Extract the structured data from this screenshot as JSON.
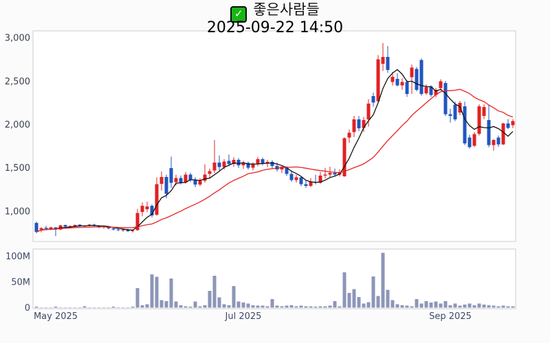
{
  "title": {
    "checkbox_icon": "green-checkbox",
    "check_glyph": "✓",
    "name": "좋은사람들",
    "datetime": "2025-09-22 14:50"
  },
  "colors": {
    "up": "#e02222",
    "down": "#2056c0",
    "volume": "#8d96b8",
    "ma_short": "#111111",
    "ma_long": "#e62222",
    "panel_border": "#cccccc",
    "panel_bg": "#ffffff"
  },
  "chart_data": {
    "type": "candlestick",
    "panels": [
      "price",
      "volume"
    ],
    "title": "좋은사람들",
    "subtitle": "2025-09-22 14:50",
    "grid": "off",
    "price_axis": {
      "range": [
        650,
        3080
      ],
      "ticks": [
        {
          "value": 3000,
          "label": "3,000"
        },
        {
          "value": 2500,
          "label": "2,500"
        },
        {
          "value": 2000,
          "label": "2,000"
        },
        {
          "value": 1500,
          "label": "1,500"
        },
        {
          "value": 1000,
          "label": "1,000"
        }
      ]
    },
    "volume_axis": {
      "unit": "millions",
      "ticks": [
        {
          "value": 100,
          "label": "100M"
        },
        {
          "value": 50,
          "label": "50M"
        },
        {
          "value": 0,
          "label": "0"
        }
      ]
    },
    "x_axis": {
      "ticks": [
        {
          "index": 4,
          "label": "May 2025"
        },
        {
          "index": 43,
          "label": "Jul 2025"
        },
        {
          "index": 86,
          "label": "Sep 2025"
        }
      ]
    },
    "up_color": "#e02222",
    "down_color": "#2056c0",
    "volume_color": "#8d96b8",
    "overlays": [
      {
        "name": "short-ma",
        "window": 5,
        "color": "#111111"
      },
      {
        "name": "long-ma",
        "window": 20,
        "color": "#e62222"
      }
    ],
    "ohlc": [
      [
        865,
        880,
        745,
        760
      ],
      [
        790,
        815,
        755,
        805
      ],
      [
        810,
        830,
        785,
        795
      ],
      [
        795,
        820,
        780,
        812
      ],
      [
        812,
        818,
        712,
        790
      ],
      [
        790,
        842,
        780,
        835
      ],
      [
        838,
        845,
        808,
        820
      ],
      [
        820,
        835,
        800,
        828
      ],
      [
        830,
        848,
        818,
        840
      ],
      [
        842,
        850,
        818,
        826
      ],
      [
        826,
        838,
        810,
        832
      ],
      [
        835,
        852,
        822,
        845
      ],
      [
        845,
        855,
        823,
        830
      ],
      [
        830,
        840,
        803,
        815
      ],
      [
        815,
        828,
        798,
        822
      ],
      [
        822,
        826,
        790,
        800
      ],
      [
        800,
        812,
        778,
        790
      ],
      [
        790,
        800,
        768,
        780
      ],
      [
        780,
        795,
        763,
        788
      ],
      [
        788,
        798,
        758,
        770
      ],
      [
        770,
        785,
        753,
        778
      ],
      [
        780,
        1025,
        773,
        980
      ],
      [
        990,
        1100,
        940,
        1060
      ],
      [
        1020,
        1110,
        988,
        1055
      ],
      [
        1060,
        1078,
        928,
        950
      ],
      [
        958,
        1390,
        948,
        1310
      ],
      [
        1315,
        1460,
        1238,
        1395
      ],
      [
        1395,
        1422,
        1148,
        1200
      ],
      [
        1495,
        1630,
        1268,
        1325
      ],
      [
        1335,
        1420,
        1298,
        1382
      ],
      [
        1382,
        1412,
        1308,
        1330
      ],
      [
        1330,
        1452,
        1318,
        1420
      ],
      [
        1420,
        1442,
        1338,
        1360
      ],
      [
        1360,
        1392,
        1278,
        1308
      ],
      [
        1308,
        1380,
        1288,
        1350
      ],
      [
        1350,
        1540,
        1330,
        1422
      ],
      [
        1430,
        1492,
        1382,
        1462
      ],
      [
        1470,
        1820,
        1438,
        1560
      ],
      [
        1560,
        1642,
        1468,
        1508
      ],
      [
        1508,
        1600,
        1480,
        1572
      ],
      [
        1580,
        1652,
        1518,
        1545
      ],
      [
        1545,
        1622,
        1510,
        1592
      ],
      [
        1592,
        1612,
        1498,
        1528
      ],
      [
        1528,
        1582,
        1488,
        1555
      ],
      [
        1555,
        1572,
        1478,
        1500
      ],
      [
        1500,
        1562,
        1470,
        1540
      ],
      [
        1540,
        1625,
        1518,
        1600
      ],
      [
        1600,
        1618,
        1528,
        1550
      ],
      [
        1550,
        1592,
        1508,
        1570
      ],
      [
        1570,
        1588,
        1488,
        1520
      ],
      [
        1520,
        1560,
        1458,
        1480
      ],
      [
        1480,
        1532,
        1440,
        1512
      ],
      [
        1505,
        1518,
        1408,
        1430
      ],
      [
        1430,
        1472,
        1338,
        1360
      ],
      [
        1360,
        1420,
        1328,
        1392
      ],
      [
        1392,
        1402,
        1288,
        1310
      ],
      [
        1310,
        1352,
        1268,
        1290
      ],
      [
        1290,
        1382,
        1278,
        1340
      ],
      [
        1340,
        1420,
        1308,
        1328
      ],
      [
        1328,
        1452,
        1318,
        1410
      ],
      [
        1410,
        1500,
        1378,
        1420
      ],
      [
        1420,
        1512,
        1388,
        1440
      ],
      [
        1440,
        1492,
        1398,
        1420
      ],
      [
        1420,
        1482,
        1400,
        1450
      ],
      [
        1402,
        1852,
        1396,
        1840
      ],
      [
        1850,
        1942,
        1788,
        1905
      ],
      [
        1912,
        2100,
        1855,
        2060
      ],
      [
        2060,
        2098,
        1922,
        1955
      ],
      [
        1960,
        2088,
        1915,
        2050
      ],
      [
        2060,
        2292,
        1975,
        2240
      ],
      [
        2330,
        2368,
        2205,
        2255
      ],
      [
        2270,
        2800,
        2248,
        2750
      ],
      [
        2700,
        2940,
        2618,
        2780
      ],
      [
        2780,
        2905,
        2595,
        2630
      ],
      [
        2490,
        2605,
        2448,
        2550
      ],
      [
        2525,
        2592,
        2438,
        2452
      ],
      [
        2452,
        2532,
        2402,
        2490
      ],
      [
        2490,
        2512,
        2318,
        2350
      ],
      [
        2545,
        2692,
        2352,
        2655
      ],
      [
        2640,
        2662,
        2382,
        2400
      ],
      [
        2745,
        2762,
        2332,
        2352
      ],
      [
        2360,
        2462,
        2340,
        2432
      ],
      [
        2440,
        2452,
        2318,
        2340
      ],
      [
        2340,
        2422,
        2312,
        2400
      ],
      [
        2420,
        2522,
        2392,
        2500
      ],
      [
        2480,
        2502,
        2098,
        2120
      ],
      [
        2120,
        2182,
        2022,
        2100
      ],
      [
        2230,
        2262,
        2038,
        2060
      ],
      [
        2140,
        2272,
        2108,
        2250
      ],
      [
        2210,
        2262,
        1762,
        1780
      ],
      [
        1850,
        1882,
        1722,
        1740
      ],
      [
        1752,
        1912,
        1742,
        1890
      ],
      [
        1892,
        2232,
        1872,
        2210
      ],
      [
        2100,
        2232,
        2062,
        2200
      ],
      [
        2050,
        2222,
        1738,
        1760
      ],
      [
        1762,
        1832,
        1698,
        1820
      ],
      [
        1850,
        1872,
        1742,
        1770
      ],
      [
        1772,
        2022,
        1762,
        2010
      ],
      [
        2012,
        2062,
        1948,
        1960
      ],
      [
        1992,
        2062,
        1958,
        2040
      ]
    ],
    "volumes_m": [
      2,
      1,
      1,
      1,
      2,
      1,
      1,
      1,
      1,
      1,
      3,
      1,
      1,
      1,
      1,
      1,
      2,
      1,
      1,
      1,
      2,
      38,
      5,
      7,
      65,
      60,
      15,
      13,
      57,
      12,
      5,
      3,
      2,
      12,
      3,
      5,
      33,
      62,
      20,
      7,
      5,
      42,
      12,
      10,
      8,
      5,
      4,
      4,
      3,
      17,
      4,
      3,
      4,
      5,
      3,
      4,
      3,
      3,
      2,
      3,
      3,
      4,
      13,
      3,
      69,
      29,
      36,
      21,
      8,
      11,
      61,
      23,
      107,
      35,
      15,
      7,
      5,
      4,
      3,
      17,
      8,
      13,
      10,
      12,
      8,
      13,
      5,
      8,
      4,
      6,
      8,
      5,
      8,
      6,
      5,
      4,
      3,
      4,
      3,
      3
    ]
  }
}
